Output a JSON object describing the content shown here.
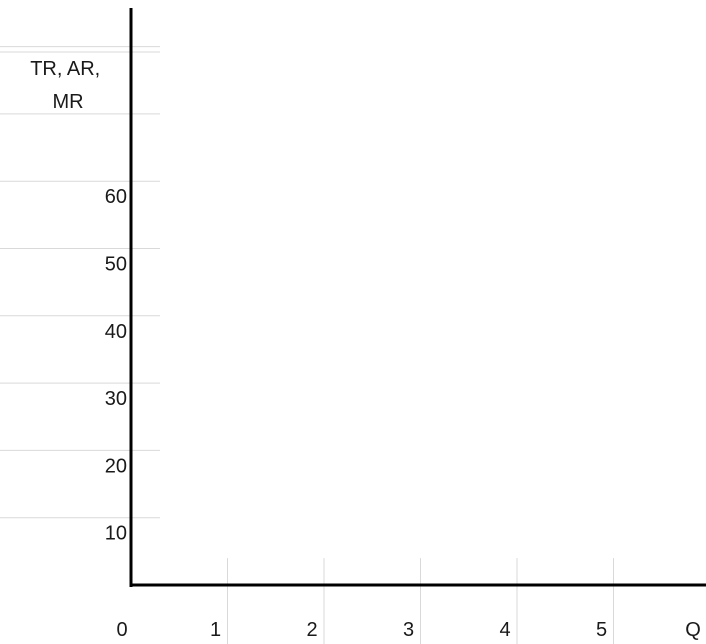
{
  "chart_data": {
    "type": "line",
    "title": "",
    "ylabel": "TR, AR, MR",
    "ylabel_lines": [
      "TR, AR,",
      "MR"
    ],
    "xlabel": "Q",
    "x_ticks": [
      "0",
      "1",
      "2",
      "3",
      "4",
      "5"
    ],
    "y_ticks": [
      "10",
      "20",
      "30",
      "40",
      "50",
      "60"
    ],
    "x_tick_values": [
      0,
      1,
      2,
      3,
      4,
      5
    ],
    "y_tick_values": [
      10,
      20,
      30,
      40,
      50,
      60
    ],
    "xlim": [
      0,
      6
    ],
    "ylim": [
      0,
      90
    ],
    "grid": true,
    "series": []
  },
  "colors": {
    "axis": "#000000",
    "grid": "#d9d9d9",
    "text": "#1a1a1a"
  }
}
